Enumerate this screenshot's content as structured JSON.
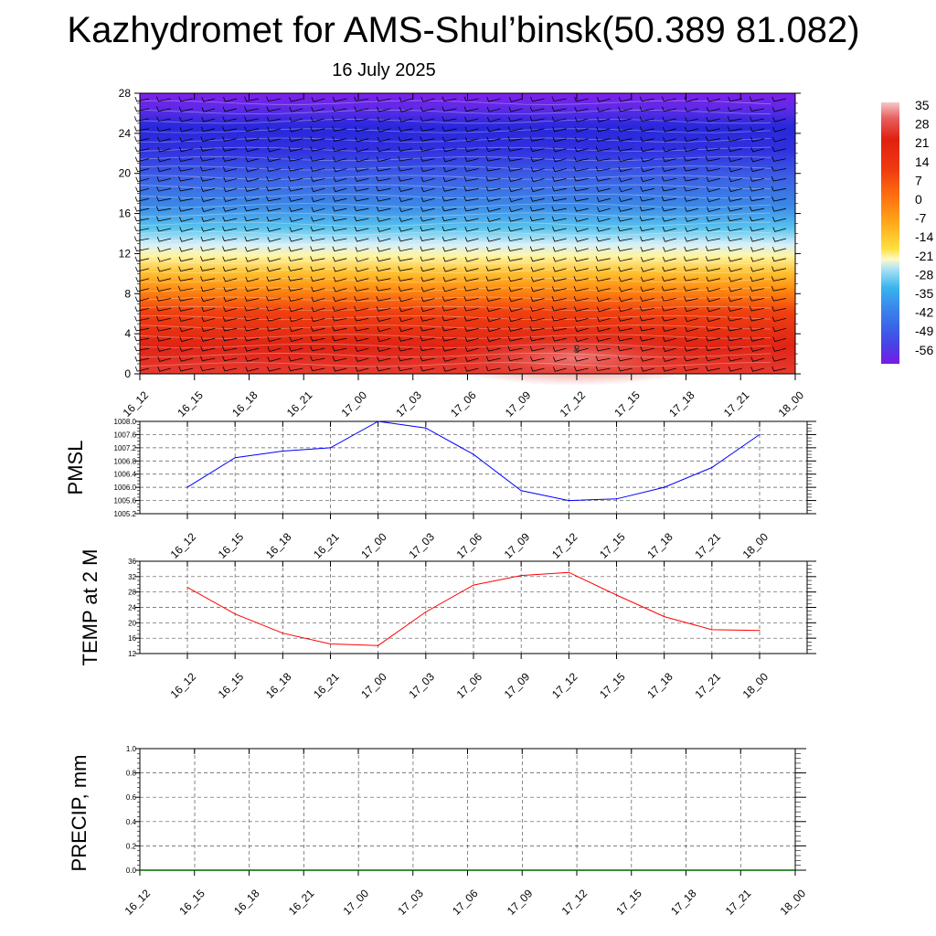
{
  "title": "Kazhydromet for AMS-Shul’binsk(50.389 81.082)",
  "subtitle": "16 July 2025",
  "chart_data": [
    {
      "type": "heatmap",
      "title": "",
      "times": [
        "16_12",
        "16_15",
        "16_18",
        "16_21",
        "17_00",
        "17_03",
        "17_06",
        "17_09",
        "17_12",
        "17_15",
        "17_18",
        "17_21",
        "18_00"
      ],
      "y_ticks": [
        0,
        4,
        8,
        12,
        16,
        20,
        24,
        28
      ],
      "ylim": [
        0,
        28
      ],
      "colorbar_labels": [
        "35",
        "28",
        "21",
        "14",
        "7",
        "0",
        "-7",
        "-14",
        "-21",
        "-28",
        "-35",
        "-42",
        "-49",
        "-56"
      ],
      "colorbar_range": [
        -56,
        35
      ],
      "colorscale": [
        "#7a1ae6",
        "#4848e8",
        "#3a6ee8",
        "#4a9aee",
        "#38bce8",
        "#9ee0f4",
        "#fff8b8",
        "#ffe040",
        "#ffb020",
        "#ff8a10",
        "#ff5a10",
        "#f03010",
        "#e02010",
        "#e85050",
        "#f0b0b0"
      ],
      "temperature_profile_note": "",
      "wind_barbs": true,
      "contour_annotation": "8"
    },
    {
      "type": "line",
      "ylabel": "PMSL",
      "x": [
        "16_12",
        "16_15",
        "16_18",
        "16_21",
        "17_00",
        "17_03",
        "17_06",
        "17_09",
        "17_12",
        "17_15",
        "17_18",
        "17_21",
        "18_00"
      ],
      "series": [
        {
          "color": "#0000ff",
          "values": [
            1006.0,
            1006.9,
            1007.1,
            1007.2,
            1008.0,
            1007.8,
            1007.0,
            1005.9,
            1005.6,
            1005.65,
            1006.0,
            1006.6,
            1007.6
          ]
        }
      ],
      "y_ticks": [
        "1005.2",
        "1005.6",
        "1006.0",
        "1006.4",
        "1006.8",
        "1007.2",
        "1007.6",
        "1008.0"
      ],
      "ylim": [
        1005.2,
        1008.0
      ],
      "grid": true
    },
    {
      "type": "line",
      "ylabel": "TEMP at 2 M",
      "x": [
        "16_12",
        "16_15",
        "16_18",
        "16_21",
        "17_00",
        "17_03",
        "17_06",
        "17_09",
        "17_12",
        "17_15",
        "17_18",
        "17_21",
        "18_00"
      ],
      "series": [
        {
          "color": "#ff0000",
          "values": [
            29.2,
            22.3,
            17.3,
            14.5,
            14.1,
            22.8,
            29.8,
            32.3,
            33.1,
            27.2,
            21.6,
            18.2,
            18.0
          ]
        }
      ],
      "y_ticks": [
        "12",
        "16",
        "20",
        "24",
        "28",
        "32",
        "36"
      ],
      "ylim": [
        12,
        36
      ],
      "grid": true
    },
    {
      "type": "bar",
      "ylabel": "PRECIP, mm",
      "x": [
        "16_12",
        "16_15",
        "16_18",
        "16_21",
        "17_00",
        "17_03",
        "17_06",
        "17_09",
        "17_12",
        "17_15",
        "17_18",
        "17_21",
        "18_00"
      ],
      "series": [
        {
          "color": "#006400",
          "values": [
            0,
            0,
            0,
            0,
            0,
            0,
            0,
            0,
            0,
            0,
            0,
            0,
            0
          ]
        }
      ],
      "y_ticks": [
        "0.0",
        "0.2",
        "0.4",
        "0.6",
        "0.8",
        "1.0"
      ],
      "ylim": [
        0,
        1
      ],
      "grid": true
    }
  ]
}
